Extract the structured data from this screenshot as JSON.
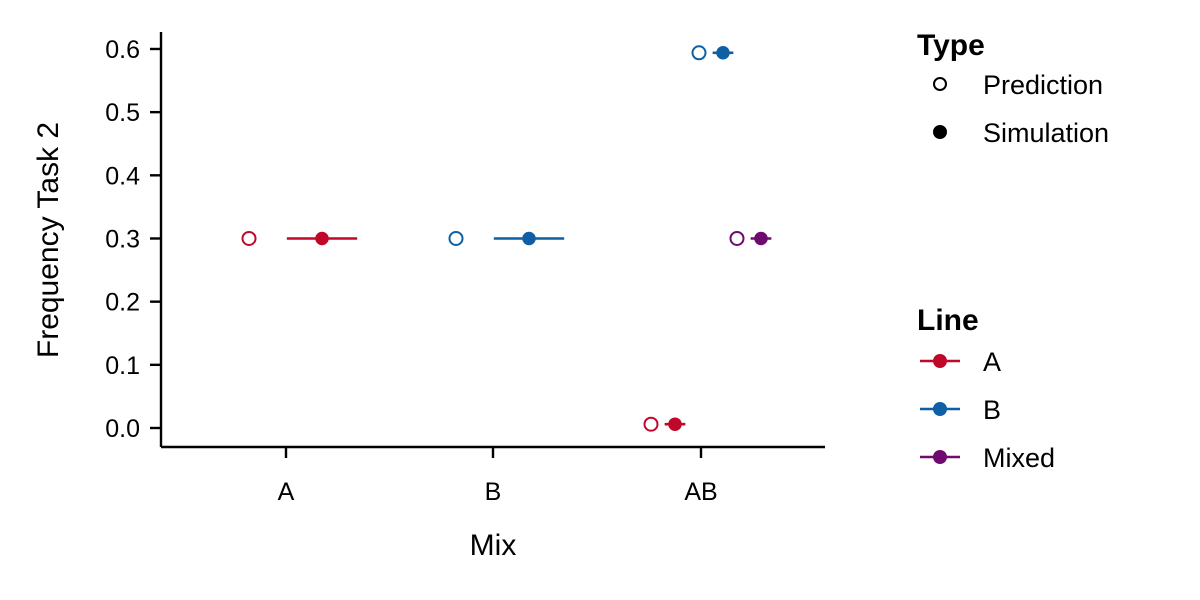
{
  "chart_data": {
    "type": "scatter",
    "xlabel": "Mix",
    "ylabel": "Frequency Task 2",
    "categories": [
      "A",
      "B",
      "AB"
    ],
    "ylim": [
      -0.025,
      0.625
    ],
    "y_ticks": [
      0.0,
      0.1,
      0.2,
      0.3,
      0.4,
      0.5,
      0.6
    ],
    "y_tick_labels": [
      "0.0",
      "0.1",
      "0.2",
      "0.3",
      "0.4",
      "0.5",
      "0.6"
    ],
    "grid": false,
    "legend_position": "right",
    "legends": {
      "type": {
        "title": "Type",
        "items": [
          {
            "label": "Prediction",
            "marker": "open-circle"
          },
          {
            "label": "Simulation",
            "marker": "filled-circle"
          }
        ]
      },
      "line": {
        "title": "Line",
        "items": [
          {
            "label": "A",
            "color": "#c0092a"
          },
          {
            "label": "B",
            "color": "#0f5fa4"
          },
          {
            "label": "Mixed",
            "color": "#6f0a6f"
          }
        ]
      }
    },
    "series": [
      {
        "line": "A",
        "color": "#c0092a",
        "points": [
          {
            "mix": "A",
            "type": "Prediction",
            "y": 0.3
          },
          {
            "mix": "A",
            "type": "Simulation",
            "y": 0.3,
            "interval_halfwidth_mix_units": 0.17
          },
          {
            "mix": "AB",
            "type": "Prediction",
            "y": 0.006
          },
          {
            "mix": "AB",
            "type": "Simulation",
            "y": 0.006,
            "interval_halfwidth_mix_units": 0.05
          }
        ]
      },
      {
        "line": "B",
        "color": "#0f5fa4",
        "points": [
          {
            "mix": "B",
            "type": "Prediction",
            "y": 0.3
          },
          {
            "mix": "B",
            "type": "Simulation",
            "y": 0.3,
            "interval_halfwidth_mix_units": 0.17
          },
          {
            "mix": "AB",
            "type": "Prediction",
            "y": 0.594
          },
          {
            "mix": "AB",
            "type": "Simulation",
            "y": 0.594,
            "interval_halfwidth_mix_units": 0.05
          }
        ]
      },
      {
        "line": "Mixed",
        "color": "#6f0a6f",
        "points": [
          {
            "mix": "AB",
            "type": "Prediction",
            "y": 0.3
          },
          {
            "mix": "AB",
            "type": "Simulation",
            "y": 0.3,
            "interval_halfwidth_mix_units": 0.05
          }
        ]
      }
    ]
  }
}
